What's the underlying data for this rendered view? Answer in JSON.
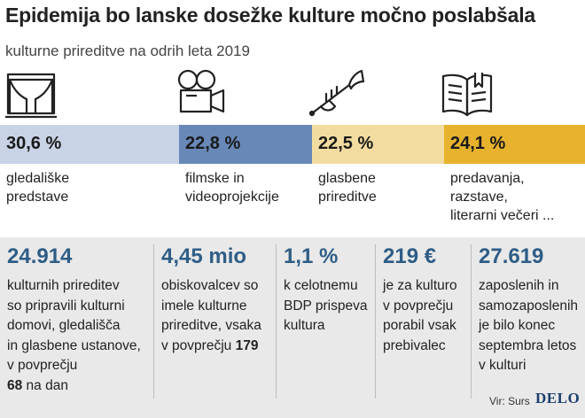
{
  "title": "Epidemija bo lanske dosežke kulture močno poslabšala",
  "subtitle": "kulturne prireditve na odrih leta 2019",
  "chart_data": {
    "type": "bar",
    "orientation": "horizontal-stacked",
    "unit": "%",
    "segments": [
      {
        "value": 30.6,
        "display": "30,6 %",
        "label": [
          "gledališke",
          "predstave"
        ],
        "color": "#c9d3e6",
        "icon": "theater-stage-icon"
      },
      {
        "value": 22.8,
        "display": "22,8 %",
        "label": [
          "filmske in",
          "videoprojekcije"
        ],
        "color": "#6888b8",
        "icon": "movie-camera-icon"
      },
      {
        "value": 22.5,
        "display": "22,5 %",
        "label": [
          "glasbene",
          "prireditve"
        ],
        "color": "#f3dca0",
        "icon": "trumpet-icon"
      },
      {
        "value": 24.1,
        "display": "24,1 %",
        "label": [
          "predavanja,",
          "razstave,",
          "literarni večeri ..."
        ],
        "color": "#e7b22d",
        "icon": "open-book-icon"
      }
    ]
  },
  "stats": [
    {
      "number": "24.914",
      "lines": [
        "kulturnih prireditev",
        "so pripravili kulturni",
        "domovi, gledališča",
        "in glasbene ustanove,",
        "v povprečju"
      ],
      "tail": {
        "bold": "68",
        "rest": " na dan"
      }
    },
    {
      "number": "4,45 mio",
      "lines": [
        "obiskovalcev so",
        "imele kulturne",
        "prireditve, vsaka"
      ],
      "tail": {
        "rest": "v povprečju ",
        "bold": "179"
      }
    },
    {
      "number": "1,1 %",
      "lines": [
        "k celotnemu",
        "BDP prispeva",
        "kultura"
      ]
    },
    {
      "number": "219 €",
      "lines": [
        "je za kulturo",
        "v povprečju",
        "porabil vsak",
        "prebivalec"
      ]
    },
    {
      "number": "27.619",
      "lines": [
        "zaposlenih in",
        "samozaposlenih",
        "je bilo konec",
        "septembra letos",
        "v kulturi"
      ]
    }
  ],
  "source": "Vir: Surs",
  "logo": "DELO"
}
